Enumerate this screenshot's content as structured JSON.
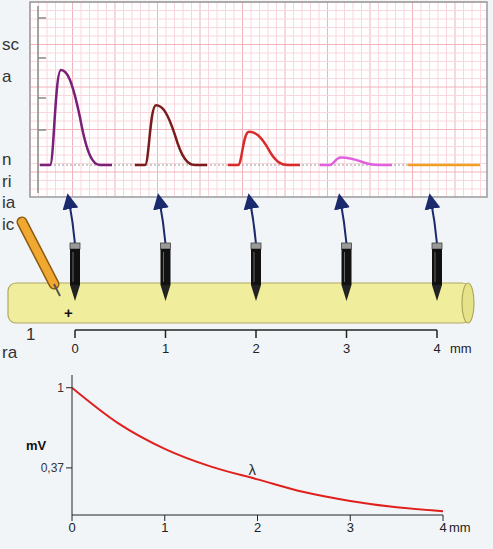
{
  "diagram": {
    "background_text": [
      "sc",
      "a",
      "n",
      "ri",
      "ia",
      "ic",
      "1",
      "ra"
    ],
    "recordings": {
      "positions": [
        0,
        1,
        2,
        3,
        4
      ],
      "peaks": [
        1,
        0.63,
        0.35,
        0.08,
        0
      ],
      "colors": [
        "#7b1f78",
        "#7a1c1c",
        "#d92b2b",
        "#e060e0",
        "#f0a024"
      ],
      "tick_labels": false,
      "grid": true
    },
    "axon": {
      "sign": "+",
      "positions": [
        0,
        1,
        2,
        3,
        4
      ],
      "unit": "mm"
    }
  },
  "chart_data": {
    "type": "line",
    "x": [
      0,
      0.5,
      1,
      1.5,
      2,
      2.5,
      3,
      3.5,
      4
    ],
    "values": [
      1,
      0.72,
      0.52,
      0.38,
      0.28,
      0.18,
      0.11,
      0.06,
      0.03
    ],
    "color": "#e0201c",
    "xlim": [
      0,
      4
    ],
    "xticks": [
      0,
      1,
      2,
      3,
      4
    ],
    "ylim": [
      0,
      1.1
    ],
    "yticks": [
      1,
      {
        "value": 0.37,
        "label": "0,37"
      }
    ],
    "x_label": "mm",
    "y_label": "mV",
    "annotations": [
      {
        "text": "λ",
        "x": 1.85,
        "y": 0.36
      }
    ]
  }
}
